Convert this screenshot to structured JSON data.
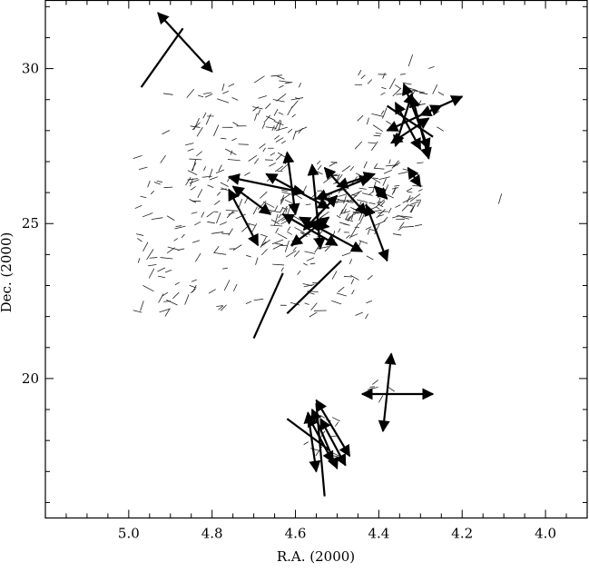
{
  "chart_data": {
    "type": "scatter",
    "title": "",
    "xlabel": "R.A. (2000)",
    "ylabel": "Dec. (2000)",
    "xlim": [
      5.2,
      3.9
    ],
    "ylim": [
      15.5,
      32.2
    ],
    "x_reversed": true,
    "xticks": [
      5.0,
      4.8,
      4.6,
      4.4,
      4.2,
      4.0
    ],
    "yticks": [
      20,
      25,
      30
    ],
    "xtick_labels": [
      "5.0",
      "4.8",
      "4.6",
      "4.4",
      "4.2",
      "4.0"
    ],
    "ytick_labels": [
      "20",
      "25",
      "30"
    ],
    "grid": false,
    "legend": "none",
    "seed": 7,
    "polarization_regions": [
      {
        "ra_min": 4.72,
        "ra_max": 4.92,
        "dec_min": 27.2,
        "dec_max": 29.5,
        "count": 30
      },
      {
        "ra_min": 4.58,
        "ra_max": 4.7,
        "dec_min": 27.0,
        "dec_max": 29.8,
        "count": 45
      },
      {
        "ra_min": 4.3,
        "ra_max": 4.55,
        "dec_min": 25.2,
        "dec_max": 27.0,
        "count": 90
      },
      {
        "ra_min": 4.3,
        "ra_max": 4.5,
        "dec_min": 24.6,
        "dec_max": 25.6,
        "count": 30
      },
      {
        "ra_min": 4.45,
        "ra_max": 4.65,
        "dec_min": 24.2,
        "dec_max": 26.2,
        "count": 55
      },
      {
        "ra_min": 4.62,
        "ra_max": 4.85,
        "dec_min": 25.0,
        "dec_max": 27.2,
        "count": 60
      },
      {
        "ra_min": 4.82,
        "ra_max": 4.98,
        "dec_min": 22.0,
        "dec_max": 27.5,
        "count": 55
      },
      {
        "ra_min": 4.55,
        "ra_max": 4.8,
        "dec_min": 22.2,
        "dec_max": 25.0,
        "count": 45
      },
      {
        "ra_min": 4.42,
        "ra_max": 4.6,
        "dec_min": 22.0,
        "dec_max": 24.5,
        "count": 25
      },
      {
        "ra_min": 4.35,
        "ra_max": 4.45,
        "dec_min": 27.5,
        "dec_max": 30.3,
        "count": 25
      },
      {
        "ra_min": 4.2,
        "ra_max": 4.35,
        "dec_min": 28.0,
        "dec_max": 30.3,
        "count": 15
      },
      {
        "ra_min": 4.5,
        "ra_max": 4.58,
        "dec_min": 17.5,
        "dec_max": 18.8,
        "count": 12
      },
      {
        "ra_min": 4.35,
        "ra_max": 4.44,
        "dec_min": 19.3,
        "dec_max": 19.9,
        "count": 5
      },
      {
        "ra_min": 4.1,
        "ra_max": 4.15,
        "dec_min": 25.8,
        "dec_max": 26.1,
        "count": 1
      }
    ],
    "plain_lines": [
      {
        "from": [
          4.97,
          29.4
        ],
        "to": [
          4.87,
          31.3
        ]
      },
      {
        "from": [
          4.7,
          21.3
        ],
        "to": [
          4.63,
          23.4
        ]
      },
      {
        "from": [
          4.62,
          22.1
        ],
        "to": [
          4.49,
          23.8
        ]
      },
      {
        "from": [
          4.38,
          28.8
        ],
        "to": [
          4.27,
          27.8
        ]
      },
      {
        "from": [
          4.62,
          18.7
        ],
        "to": [
          4.52,
          17.7
        ]
      },
      {
        "from": [
          4.55,
          19.2
        ],
        "to": [
          4.53,
          16.2
        ]
      }
    ],
    "double_arrows": [
      {
        "from": [
          4.93,
          31.8
        ],
        "to": [
          4.8,
          29.9
        ]
      },
      {
        "from": [
          4.38,
          28.0
        ],
        "to": [
          4.25,
          28.8
        ]
      },
      {
        "from": [
          4.37,
          27.6
        ],
        "to": [
          4.28,
          28.4
        ]
      },
      {
        "from": [
          4.34,
          29.5
        ],
        "to": [
          4.28,
          27.4
        ]
      },
      {
        "from": [
          4.32,
          29.1
        ],
        "to": [
          4.28,
          27.1
        ]
      },
      {
        "from": [
          4.3,
          28.5
        ],
        "to": [
          4.2,
          29.1
        ]
      },
      {
        "from": [
          4.36,
          28.9
        ],
        "to": [
          4.3,
          27.4
        ]
      },
      {
        "from": [
          4.33,
          26.8
        ],
        "to": [
          4.3,
          26.2
        ]
      },
      {
        "from": [
          4.36,
          27.5
        ],
        "to": [
          4.32,
          29.2
        ]
      },
      {
        "from": [
          4.76,
          26.5
        ],
        "to": [
          4.58,
          26.0
        ]
      },
      {
        "from": [
          4.75,
          26.2
        ],
        "to": [
          4.66,
          25.3
        ]
      },
      {
        "from": [
          4.76,
          26.1
        ],
        "to": [
          4.69,
          24.3
        ]
      },
      {
        "from": [
          4.67,
          26.6
        ],
        "to": [
          4.52,
          25.5
        ]
      },
      {
        "from": [
          4.62,
          27.3
        ],
        "to": [
          4.6,
          25.3
        ]
      },
      {
        "from": [
          4.56,
          26.9
        ],
        "to": [
          4.54,
          24.2
        ]
      },
      {
        "from": [
          4.55,
          25.8
        ],
        "to": [
          4.42,
          26.5
        ]
      },
      {
        "from": [
          4.5,
          26.2
        ],
        "to": [
          4.41,
          26.6
        ]
      },
      {
        "from": [
          4.53,
          26.8
        ],
        "to": [
          4.43,
          25.3
        ]
      },
      {
        "from": [
          4.59,
          25.2
        ],
        "to": [
          4.44,
          24.1
        ]
      },
      {
        "from": [
          4.63,
          25.3
        ],
        "to": [
          4.5,
          24.3
        ]
      },
      {
        "from": [
          4.58,
          24.8
        ],
        "to": [
          4.5,
          25.9
        ]
      },
      {
        "from": [
          4.61,
          24.3
        ],
        "to": [
          4.52,
          25.2
        ]
      },
      {
        "from": [
          4.43,
          25.6
        ],
        "to": [
          4.38,
          23.8
        ]
      },
      {
        "from": [
          4.41,
          26.2
        ],
        "to": [
          4.38,
          25.8
        ]
      },
      {
        "from": [
          4.57,
          25.0
        ],
        "to": [
          4.52,
          24.9
        ]
      },
      {
        "from": [
          4.44,
          19.5
        ],
        "to": [
          4.27,
          19.5
        ]
      },
      {
        "from": [
          4.37,
          20.8
        ],
        "to": [
          4.39,
          18.3
        ]
      },
      {
        "from": [
          4.57,
          18.9
        ],
        "to": [
          4.55,
          17.0
        ]
      },
      {
        "from": [
          4.56,
          19.0
        ],
        "to": [
          4.5,
          17.1
        ]
      },
      {
        "from": [
          4.55,
          19.3
        ],
        "to": [
          4.47,
          17.5
        ]
      },
      {
        "from": [
          4.57,
          18.8
        ],
        "to": [
          4.51,
          17.3
        ]
      },
      {
        "from": [
          4.54,
          18.7
        ],
        "to": [
          4.48,
          17.2
        ]
      }
    ]
  }
}
